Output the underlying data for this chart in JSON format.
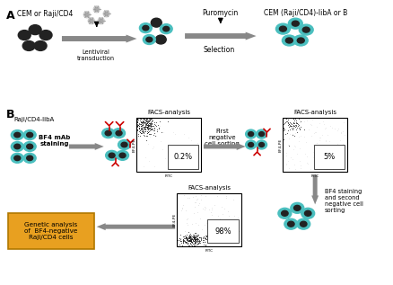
{
  "panel_A_label": "A",
  "panel_B_label": "B",
  "title_A_text1": "CEM or Raji/CD4",
  "title_A_text2": "CEM (Raji/CD4)-libA or B",
  "lentiviral_text": "Lentiviral\ntransduction",
  "puromycin_text": "Puromycin",
  "selection_text": "Selection",
  "raji_libA_text": "Raji/CD4-libA",
  "BF4_staining_text": "BF4 mAb\nstaining",
  "facs1_title": "FACS-analysis",
  "facs2_title": "FACS-analysis",
  "facs3_title": "FACS-analysis",
  "facs1_pct": "0.2%",
  "facs2_pct": "5%",
  "facs3_pct": "98%",
  "first_sort_text": "First\nnegative\ncell sorting",
  "second_sort_text": "BF4 staining\nand second\nnegative cell\nsorting",
  "genetic_text": "Genetic analysis\nof  BF4-negative\nRaji/CD4 cells",
  "facs_ylabel": "BF4-PE",
  "facs_xlabel": "FITC",
  "bg_color": "#ffffff",
  "cell_fill_dark": "#222222",
  "cell_fill_teal": "#4bbfbf",
  "cell_outline": "#000000",
  "arrow_color": "#888888",
  "antibody_color": "#cc0000",
  "box_fill": "#e8a020",
  "box_edge": "#b07800",
  "facs_border": "#000000",
  "scatter_color1": "#111111",
  "scatter_color2": "#aaaaaa"
}
